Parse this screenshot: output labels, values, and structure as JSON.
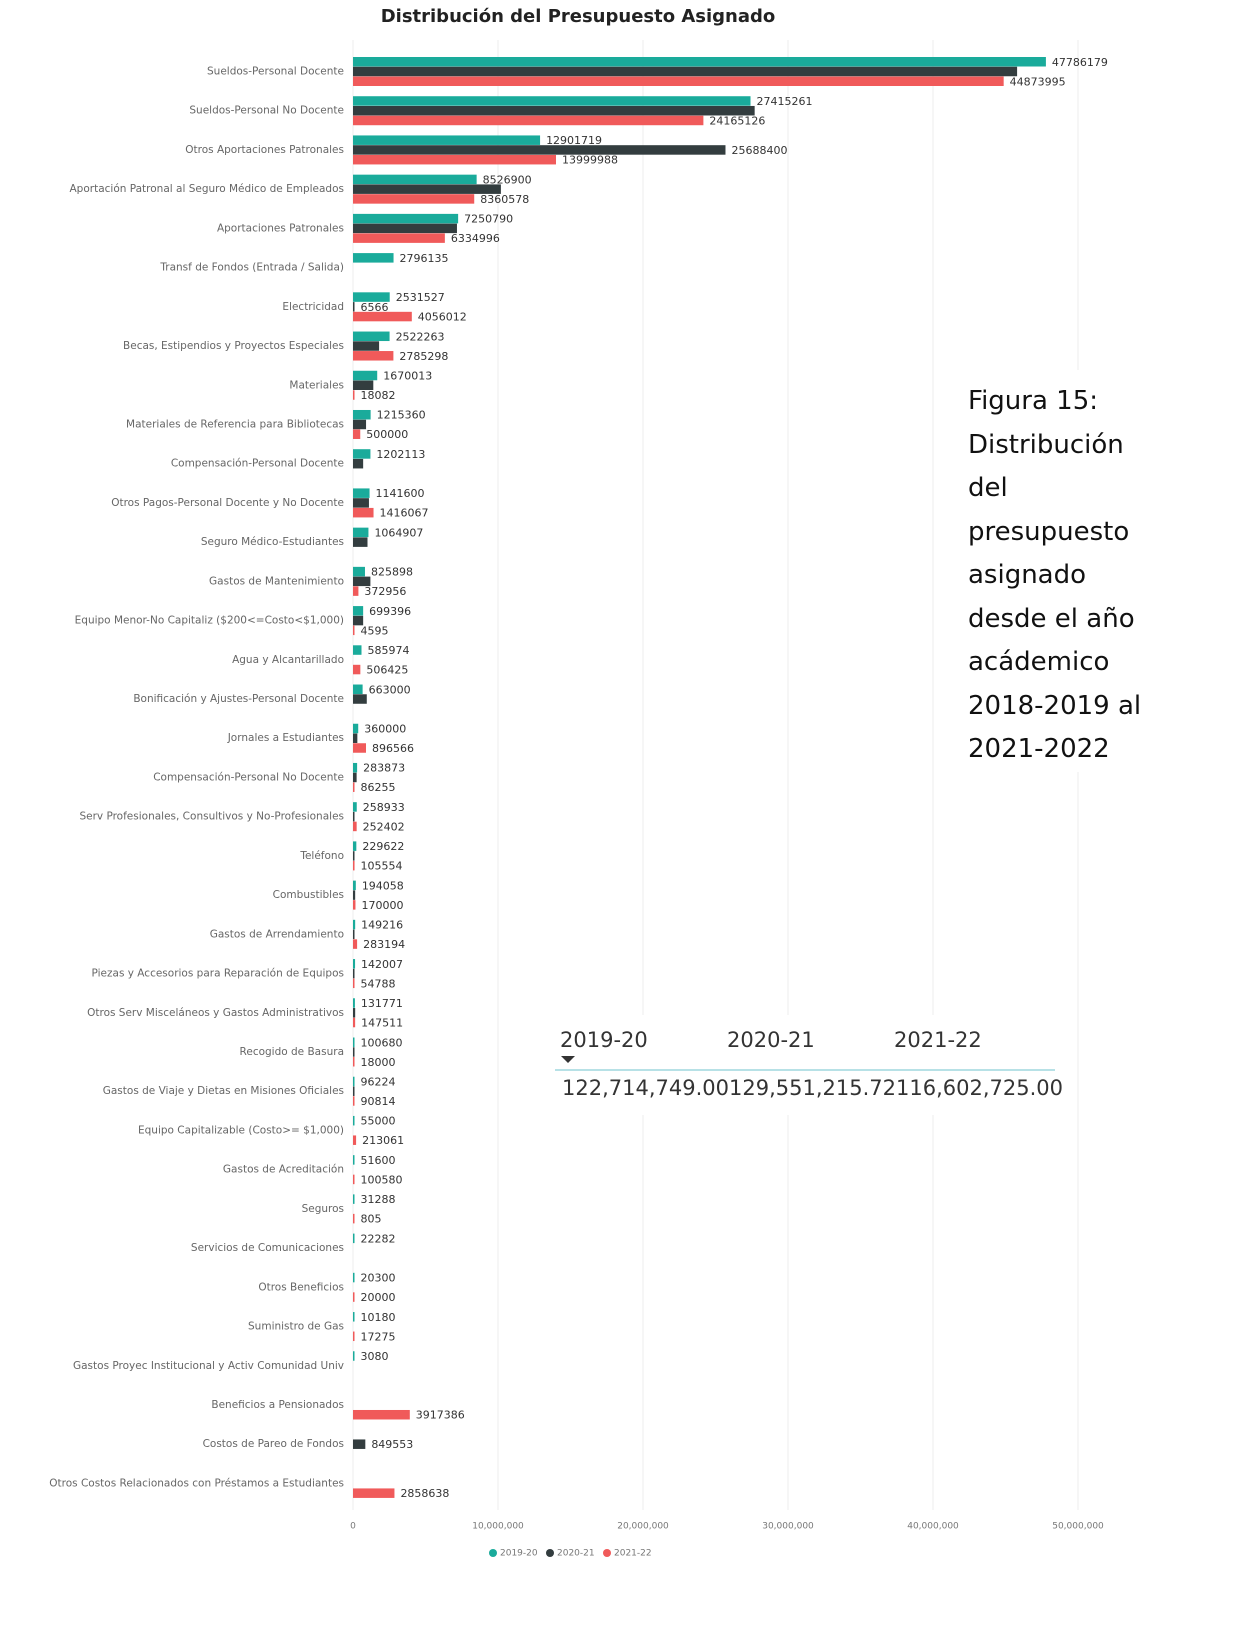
{
  "chart_data": {
    "type": "bar",
    "orientation": "horizontal",
    "title": "Distribución del Presupuesto Asignado",
    "categories": [
      "Sueldos-Personal Docente",
      "Sueldos-Personal No Docente",
      "Otros Aportaciones Patronales",
      "Aportación Patronal al Seguro Médico de Empleados",
      "Aportaciones Patronales",
      "Transf de Fondos (Entrada / Salida)",
      "Electricidad",
      "Becas, Estipendios y Proyectos Especiales",
      "Materiales",
      "Materiales de Referencia para Bibliotecas",
      "Compensación-Personal Docente",
      "Otros Pagos-Personal Docente y No Docente",
      "Seguro Médico-Estudiantes",
      "Gastos de Mantenimiento",
      "Equipo Menor-No Capitaliz ($200<=Costo<$1,000)",
      "Agua y Alcantarillado",
      "Bonificación y Ajustes-Personal Docente",
      "Jornales a Estudiantes",
      "Compensación-Personal No Docente",
      "Serv Profesionales, Consultivos y No-Profesionales",
      "Teléfono",
      "Combustibles",
      "Gastos de Arrendamiento",
      "Piezas y Accesorios para Reparación de Equipos",
      "Otros Serv Misceláneos y Gastos Administrativos",
      "Recogido de Basura",
      "Gastos de Viaje y Dietas en Misiones Oficiales",
      "Equipo Capitalizable (Costo>= $1,000)",
      "Gastos de Acreditación",
      "Seguros",
      "Servicios de Comunicaciones",
      "Otros Beneficios",
      "Suministro de Gas",
      "Gastos Proyec Institucional y Activ Comunidad Univ",
      "Beneficios a Pensionados",
      "Costos de Pareo de Fondos",
      "Otros Costos Relacionados con Préstamos a Estudiantes"
    ],
    "series": [
      {
        "name": "2019-20",
        "color": "#1aab9b",
        "values": [
          47786179,
          27415261,
          12901719,
          8526900,
          7250790,
          2796135,
          2531527,
          2522263,
          1670013,
          1215360,
          1202113,
          1141600,
          1064907,
          825898,
          699396,
          585974,
          663000,
          360000,
          283873,
          258933,
          229622,
          194058,
          149216,
          142007,
          131771,
          100680,
          96224,
          55000,
          51600,
          31288,
          22282,
          20300,
          10180,
          3080,
          null,
          null,
          null
        ],
        "value_labels": [
          "47786179",
          "27415261",
          "12901719",
          "8526900",
          "7250790",
          "2796135",
          "2531527",
          "2522263",
          "1670013",
          "1215360",
          "1202113",
          "1141600",
          "1064907",
          "825898",
          "699396",
          "585974",
          "663000",
          "360000",
          "283873",
          "258933",
          "229622",
          "194058",
          "149216",
          "142007",
          "131771",
          "100680",
          "96224",
          "55000",
          "51600",
          "31288",
          "22282",
          "20300",
          "10180",
          "3080",
          null,
          null,
          null
        ]
      },
      {
        "name": "2020-21",
        "color": "#333d3f",
        "values": [
          45800000,
          27700000,
          25688400,
          10200000,
          7170000,
          null,
          6566,
          1800000,
          1400000,
          900000,
          700000,
          1100000,
          1000000,
          1200000,
          700000,
          null,
          950000,
          300000,
          250000,
          100000,
          100000,
          150000,
          100000,
          100000,
          150000,
          80000,
          50000,
          null,
          null,
          null,
          null,
          null,
          null,
          null,
          null,
          849553,
          null
        ],
        "value_labels": [
          null,
          null,
          "25688400",
          null,
          null,
          null,
          "6566",
          null,
          null,
          null,
          null,
          null,
          null,
          null,
          null,
          null,
          null,
          null,
          null,
          null,
          null,
          null,
          null,
          null,
          null,
          null,
          null,
          null,
          null,
          null,
          null,
          null,
          null,
          null,
          null,
          "849553",
          null
        ]
      },
      {
        "name": "2021-22",
        "color": "#f05a5a",
        "values": [
          44873995,
          24165126,
          13999988,
          8360578,
          6334996,
          null,
          4056012,
          2785298,
          18082,
          500000,
          null,
          1416067,
          null,
          372956,
          4595,
          506425,
          null,
          896566,
          86255,
          252402,
          105554,
          170000,
          283194,
          54788,
          147511,
          18000,
          90814,
          213061,
          100580,
          805,
          null,
          20000,
          17275,
          null,
          3917386,
          null,
          2858638
        ],
        "value_labels": [
          "44873995",
          "24165126",
          "13999988",
          "8360578",
          "6334996",
          null,
          "4056012",
          "2785298",
          "18082",
          "500000",
          null,
          "1416067",
          null,
          "372956",
          "4595",
          "506425",
          null,
          "896566",
          "86255",
          "252402",
          "105554",
          "170000",
          "283194",
          "54788",
          "147511",
          "18000",
          "90814",
          "213061",
          "100580",
          "805",
          null,
          "20000",
          "17275",
          null,
          "3917386",
          null,
          "2858638"
        ]
      }
    ],
    "xlim": [
      0,
      50000000
    ],
    "xticks": [
      0,
      {
        "value": 10000000,
        "label": "10,000,000"
      },
      {
        "value": 20000000,
        "label": "20,000,000"
      },
      {
        "value": 30000000,
        "label": "30,000,000"
      },
      {
        "value": 40000000,
        "label": "40,000,000"
      },
      {
        "value": 50000000,
        "label": "50,000,000"
      }
    ],
    "grid": true,
    "legend": "bottom"
  },
  "caption": "Figura 15: Distribución del presupuesto asignado desde el año acádemico 2018-2019 al 2021-2022",
  "summary": {
    "columns": [
      "2019-20",
      "2020-21",
      "2021-22"
    ],
    "values": [
      "122,714,749.00",
      "129,551,215.72",
      "116,602,725.00"
    ]
  }
}
